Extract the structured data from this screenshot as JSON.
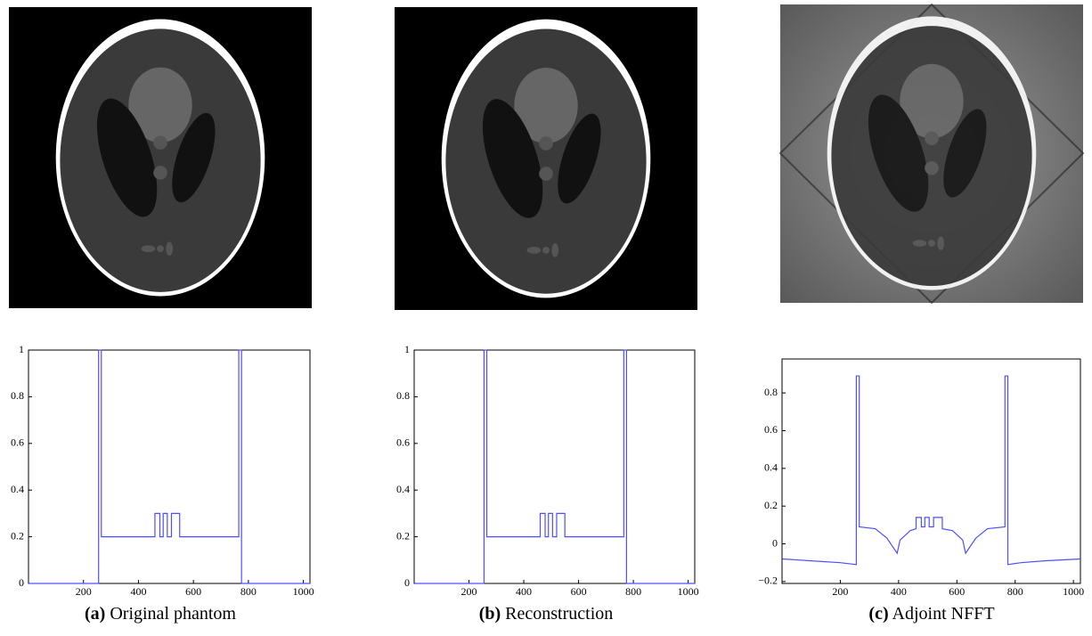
{
  "chart_data": [
    {
      "type": "line",
      "label": "(a)",
      "title": "Original phantom",
      "color": "#4f4fff",
      "x": [
        1,
        255,
        255,
        265,
        265,
        460,
        460,
        478,
        478,
        490,
        490,
        505,
        505,
        520,
        520,
        550,
        550,
        765,
        765,
        775,
        775,
        1024
      ],
      "values": [
        0,
        0,
        1,
        1,
        0.2,
        0.2,
        0.3,
        0.3,
        0.2,
        0.2,
        0.3,
        0.3,
        0.2,
        0.2,
        0.3,
        0.3,
        0.2,
        0.2,
        1,
        1,
        0,
        0
      ],
      "xlim": [
        0,
        1024
      ],
      "xticks": [
        200,
        400,
        600,
        800,
        1000
      ],
      "ylim": [
        0,
        1
      ],
      "yticks": [
        0,
        0.2,
        0.4,
        0.6,
        0.8,
        1
      ],
      "grid": false
    },
    {
      "type": "line",
      "label": "(b)",
      "title": "Reconstruction",
      "color": "#4f4fff",
      "x": [
        1,
        255,
        255,
        265,
        265,
        460,
        460,
        478,
        478,
        490,
        490,
        505,
        505,
        520,
        520,
        550,
        550,
        765,
        765,
        775,
        775,
        1024
      ],
      "values": [
        0,
        0,
        1,
        1,
        0.2,
        0.2,
        0.3,
        0.3,
        0.2,
        0.2,
        0.3,
        0.3,
        0.2,
        0.2,
        0.3,
        0.3,
        0.2,
        0.2,
        1,
        1,
        0,
        0
      ],
      "xlim": [
        0,
        1024
      ],
      "xticks": [
        200,
        400,
        600,
        800,
        1000
      ],
      "ylim": [
        0,
        1
      ],
      "yticks": [
        0,
        0.2,
        0.4,
        0.6,
        0.8,
        1
      ],
      "grid": false
    },
    {
      "type": "line",
      "label": "(c)",
      "title": "Adjoint NFFT",
      "color": "#4f4fff",
      "x": [
        1,
        100,
        200,
        255,
        255,
        265,
        265,
        320,
        360,
        395,
        405,
        440,
        460,
        460,
        478,
        478,
        490,
        490,
        505,
        505,
        520,
        520,
        550,
        550,
        585,
        620,
        630,
        665,
        705,
        765,
        765,
        775,
        775,
        820,
        900,
        1024
      ],
      "values": [
        -0.08,
        -0.09,
        -0.1,
        -0.11,
        0.89,
        0.89,
        0.09,
        0.08,
        0.03,
        -0.05,
        0.02,
        0.07,
        0.08,
        0.14,
        0.14,
        0.09,
        0.09,
        0.14,
        0.14,
        0.09,
        0.09,
        0.14,
        0.14,
        0.08,
        0.07,
        0.02,
        -0.05,
        0.03,
        0.08,
        0.09,
        0.89,
        0.89,
        -0.11,
        -0.1,
        -0.09,
        -0.08
      ],
      "xlim": [
        0,
        1024
      ],
      "xticks": [
        200,
        400,
        600,
        800,
        1000
      ],
      "ylim": [
        -0.21,
        0.98
      ],
      "yticks": [
        {
          "value": -0.2,
          "label": "−0.2"
        },
        0,
        0.2,
        0.4,
        0.6,
        0.8
      ],
      "grid": false
    }
  ]
}
